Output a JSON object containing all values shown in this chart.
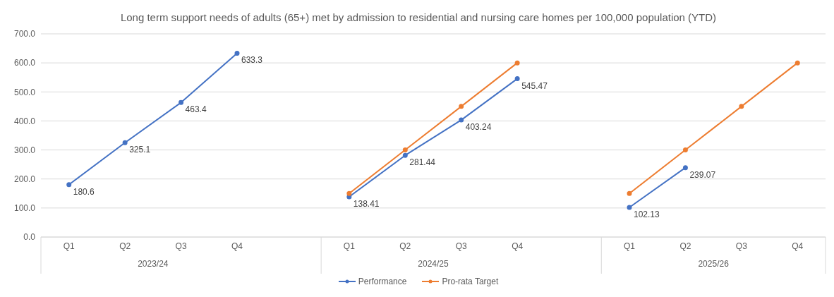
{
  "chart_data": {
    "type": "line",
    "title": "Long term support needs of adults (65+) met by admission to residential and nursing care homes per 100,000 population (YTD)",
    "categories": [
      "Q1",
      "Q2",
      "Q3",
      "Q4",
      null,
      "Q1",
      "Q2",
      "Q3",
      "Q4",
      null,
      "Q1",
      "Q2",
      "Q3",
      "Q4"
    ],
    "annotations": [
      "2023/24",
      "2024/25",
      "2025/26"
    ],
    "series": [
      {
        "name": "Performance",
        "color": "#4472c4",
        "values": [
          180.6,
          325.1,
          463.4,
          633.3,
          null,
          138.41,
          281.44,
          403.24,
          545.47,
          null,
          102.13,
          239.07,
          null,
          null
        ],
        "value_labels": [
          "180.6",
          "325.1",
          "463.4",
          "633.3",
          null,
          "138.41",
          "281.44",
          "403.24",
          "545.47",
          null,
          "102.13",
          "239.07",
          null,
          null
        ]
      },
      {
        "name": "Pro-rata Target",
        "color": "#ed7d31",
        "values": [
          null,
          null,
          null,
          null,
          null,
          150,
          300,
          450,
          600,
          null,
          150,
          300,
          450,
          600
        ]
      }
    ],
    "ylim": [
      0,
      700
    ],
    "yticks": [
      {
        "value": 0,
        "label": "0.0"
      },
      {
        "value": 100,
        "label": "100.0"
      },
      {
        "value": 200,
        "label": "200.0"
      },
      {
        "value": 300,
        "label": "300.0"
      },
      {
        "value": 400,
        "label": "400.0"
      },
      {
        "value": 500,
        "label": "500.0"
      },
      {
        "value": 600,
        "label": "600.0"
      },
      {
        "value": 700,
        "label": "700.0"
      }
    ],
    "grid": "y",
    "legend": "bottom",
    "marker": "circle",
    "line_style": "solid"
  }
}
